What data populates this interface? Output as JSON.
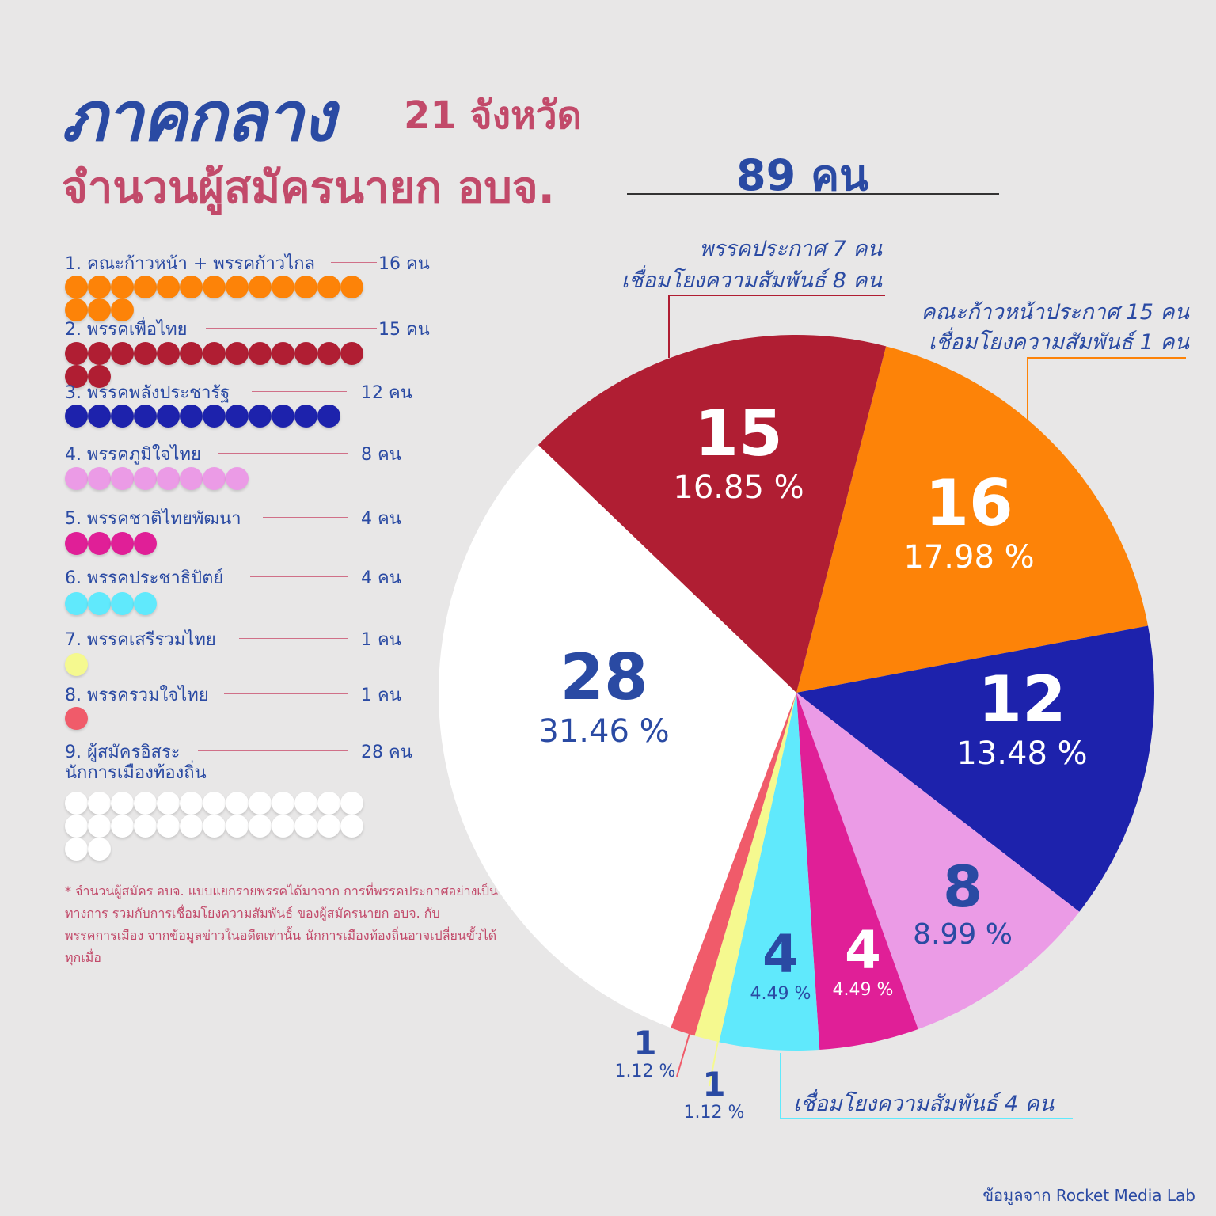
{
  "header": {
    "title": "ภาคกลาง",
    "region_count": "21 จังหวัด",
    "subtitle": "จำนวนผู้สมัครนายก อบจ.",
    "total": "89 คน"
  },
  "legend": [
    {
      "label": "1. คณะก้าวหน้า + พรรคก้าวไกล",
      "count": "16 คน",
      "color": "#fd8308",
      "n": 16
    },
    {
      "label": "2. พรรคเพื่อไทย",
      "count": "15 คน",
      "color": "#b01e33",
      "n": 15
    },
    {
      "label": "3. พรรคพลังประชารัฐ",
      "count": "12 คน",
      "color": "#1d22ac",
      "n": 12
    },
    {
      "label": "4. พรรคภูมิใจไทย",
      "count": "8 คน",
      "color": "#eb9be6",
      "n": 8
    },
    {
      "label": "5. พรรคชาติไทยพัฒนา",
      "count": "4 คน",
      "color": "#e01f97",
      "n": 4
    },
    {
      "label": "6. พรรคประชาธิปัตย์",
      "count": "4 คน",
      "color": "#60e9fc",
      "n": 4
    },
    {
      "label": "7. พรรคเสรีรวมไทย",
      "count": "1 คน",
      "color": "#f5f98f",
      "n": 1
    },
    {
      "label": "8. พรรครวมใจไทย",
      "count": "1 คน",
      "color": "#f05b6a",
      "n": 1
    },
    {
      "label": "9. ผู้สมัครอิสระ\nนักการเมืองท้องถิ่น",
      "count": "28 คน",
      "color": "#ffffff",
      "n": 28
    }
  ],
  "footnote": "* จำนวนผู้สมัคร อบจ. แบบแยกรายพรรคได้มาจาก การที่พรรคประกาศอย่างเป็นทางการ รวมกับการเชื่อมโยงความสัมพันธ์ ของผู้สมัครนายก อบจ. กับพรรคการเมือง จากข้อมูลข่าวในอดีตเท่านั้น นักการเมืองท้องถิ่นอาจเปลี่ยนขั้วได้ทุกเมื่อ",
  "annotations": {
    "pheu_thai_1": "พรรคประกาศ  7 คน",
    "pheu_thai_2": "เชื่อมโยงความสัมพันธ์ 8 คน",
    "progressive_1": "คณะก้าวหน้าประกาศ 15 คน",
    "progressive_2": "เชื่อมโยงความสัมพันธ์ 1 คน",
    "democrat": "เชื่อมโยงความสัมพันธ์ 4 คน"
  },
  "source": "ข้อมูลจาก Rocket Media Lab",
  "chart_data": {
    "type": "pie",
    "slices": [
      {
        "name": "คณะก้าวหน้า + พรรคก้าวไกล",
        "value": 16,
        "label": "16",
        "pct": "17.98 %",
        "color": "#fd8308"
      },
      {
        "name": "พรรคพลังประชารัฐ",
        "value": 12,
        "label": "12",
        "pct": "13.48 %",
        "color": "#1d22ac"
      },
      {
        "name": "พรรคภูมิใจไทย",
        "value": 8,
        "label": "8",
        "pct": "8.99 %",
        "color": "#eb9be6"
      },
      {
        "name": "พรรคชาติไทยพัฒนา",
        "value": 4,
        "label": "4",
        "pct": "4.49 %",
        "color": "#e01f97"
      },
      {
        "name": "พรรคประชาธิปัตย์",
        "value": 4,
        "label": "4",
        "pct": "4.49 %",
        "color": "#60e9fc"
      },
      {
        "name": "พรรคเสรีรวมไทย",
        "value": 1,
        "label": "1",
        "pct": "1.12 %",
        "color": "#f5f98f"
      },
      {
        "name": "พรรครวมใจไทย",
        "value": 1,
        "label": "1",
        "pct": "1.12 %",
        "color": "#f05b6a"
      },
      {
        "name": "ผู้สมัครอิสระ นักการเมืองท้องถิ่น",
        "value": 28,
        "label": "28",
        "pct": "31.46 %",
        "color": "#ffffff"
      },
      {
        "name": "พรรคเพื่อไทย",
        "value": 15,
        "label": "15",
        "pct": "16.85 %",
        "color": "#b01e33"
      }
    ],
    "total": 89
  }
}
